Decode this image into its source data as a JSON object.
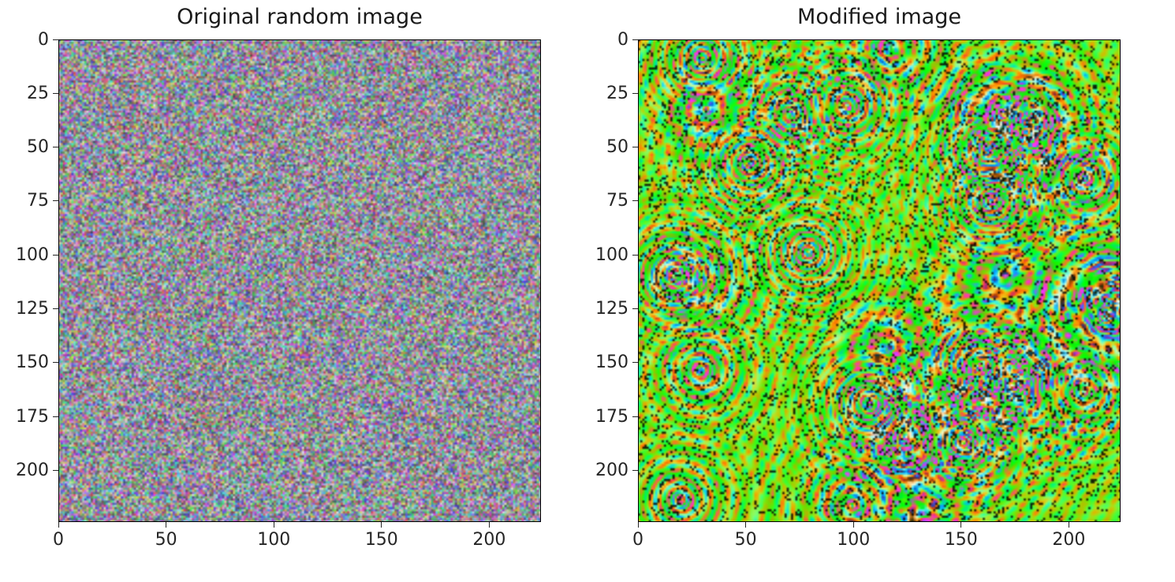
{
  "chart_data": [
    {
      "type": "heatmap",
      "title": "Original random image",
      "xlabel": "",
      "ylabel": "",
      "image_size": [
        224,
        224
      ],
      "xlim": [
        0,
        224
      ],
      "ylim": [
        224,
        0
      ],
      "xticks": [
        0,
        50,
        100,
        150,
        200
      ],
      "yticks": [
        0,
        25,
        50,
        75,
        100,
        125,
        150,
        175,
        200
      ],
      "grid": false,
      "content": "random RGB noise"
    },
    {
      "type": "heatmap",
      "title": "Modified image",
      "xlabel": "",
      "ylabel": "",
      "image_size": [
        224,
        224
      ],
      "xlim": [
        0,
        224
      ],
      "ylim": [
        224,
        0
      ],
      "xticks": [
        0,
        50,
        100,
        150,
        200
      ],
      "yticks": [
        0,
        25,
        50,
        75,
        100,
        125,
        150,
        175,
        200
      ],
      "grid": false,
      "content": "psychedelic swirling pattern"
    }
  ],
  "colors": {
    "axis": "#000000",
    "tick_label": "#262626",
    "title": "#1a1a1a"
  }
}
